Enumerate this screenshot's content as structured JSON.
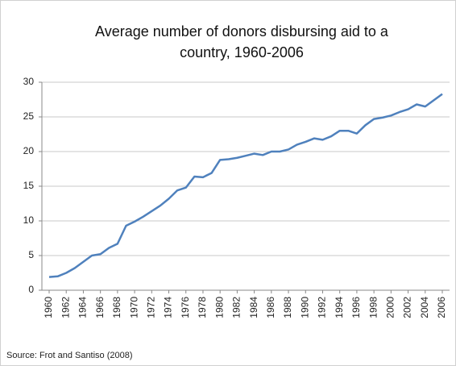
{
  "chart_data": {
    "type": "line",
    "title": [
      "Average number of donors disbursing aid to a",
      "country, 1960-2006"
    ],
    "source": "Source: Frot and Santiso (2008)",
    "x": [
      1960,
      1961,
      1962,
      1963,
      1964,
      1965,
      1966,
      1967,
      1968,
      1969,
      1970,
      1971,
      1972,
      1973,
      1974,
      1975,
      1976,
      1977,
      1978,
      1979,
      1980,
      1981,
      1982,
      1983,
      1984,
      1985,
      1986,
      1987,
      1988,
      1989,
      1990,
      1991,
      1992,
      1993,
      1994,
      1995,
      1996,
      1997,
      1998,
      1999,
      2000,
      2001,
      2002,
      2003,
      2004,
      2005,
      2006
    ],
    "series": [
      {
        "name": "Average number of donors",
        "color": "#4f81bd",
        "values": [
          1.9,
          2.0,
          2.5,
          3.2,
          4.1,
          5.0,
          5.2,
          6.1,
          6.7,
          9.3,
          9.9,
          10.6,
          11.4,
          12.2,
          13.2,
          14.4,
          14.8,
          16.4,
          16.3,
          16.9,
          18.8,
          18.9,
          19.1,
          19.4,
          19.7,
          19.5,
          20.0,
          20.0,
          20.3,
          21.0,
          21.4,
          21.9,
          21.7,
          22.2,
          23.0,
          23.0,
          22.6,
          23.8,
          24.7,
          24.9,
          25.2,
          25.7,
          26.1,
          26.8,
          26.5,
          27.4,
          28.3
        ]
      }
    ],
    "xlim": [
      1960,
      2006
    ],
    "xticks": [
      1960,
      1962,
      1964,
      1966,
      1968,
      1970,
      1972,
      1974,
      1976,
      1978,
      1980,
      1982,
      1984,
      1986,
      1988,
      1990,
      1992,
      1994,
      1996,
      1998,
      2000,
      2002,
      2004,
      2006
    ],
    "ylim": [
      0,
      30
    ],
    "yticks": [
      0,
      5,
      10,
      15,
      20,
      25,
      30
    ],
    "grid": true
  }
}
